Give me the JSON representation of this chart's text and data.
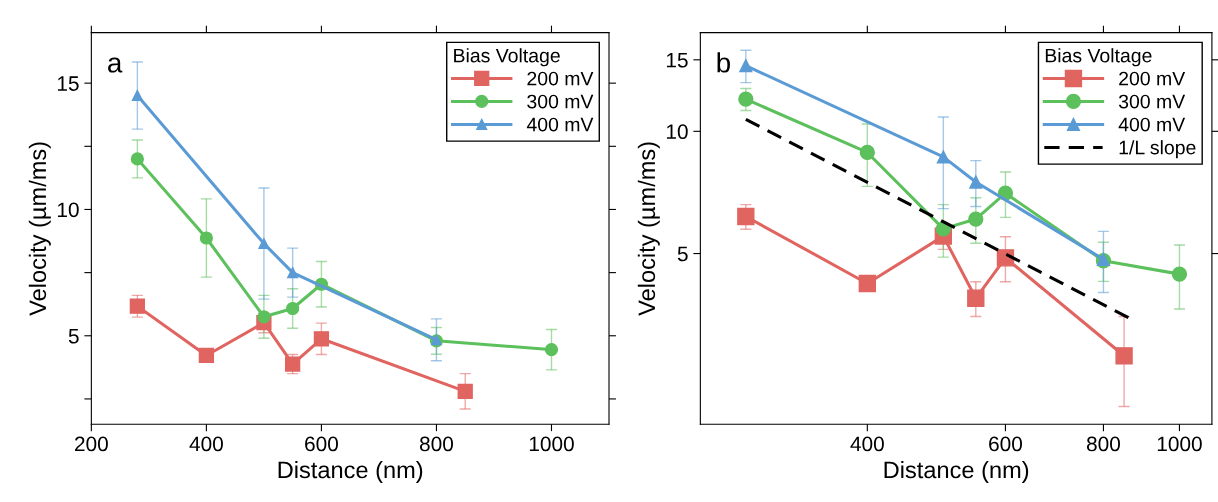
{
  "chart_data": [
    {
      "type": "line",
      "xlabel": "Distance (nm)",
      "ylabel": "Velocity (µm/ms)",
      "legend_title": "Bias Voltage",
      "legend": "top right",
      "grid": false,
      "annotations": [
        "a"
      ],
      "xlim": [
        200,
        1100
      ],
      "xticks": [
        200,
        400,
        600,
        800,
        1000
      ],
      "ylim": [
        1.5,
        17
      ],
      "yticks": [
        {
          "value": 2.5,
          "label": null
        },
        5,
        {
          "value": 7.5,
          "label": null
        },
        10,
        {
          "value": 12.5,
          "label": null
        },
        15
      ],
      "series": [
        {
          "name": "200 mV",
          "color": "#e06460",
          "marker": "square",
          "x": [
            280,
            400,
            500,
            550,
            600,
            850
          ],
          "values": [
            6.17,
            4.22,
            5.52,
            3.88,
            4.88,
            2.8
          ],
          "errors": [
            0.43,
            null,
            0.4,
            0.38,
            0.62,
            0.7
          ]
        },
        {
          "name": "300 mV",
          "color": "#5cc05c",
          "marker": "circle",
          "x": [
            280,
            400,
            500,
            550,
            600,
            800,
            1000
          ],
          "values": [
            12.0,
            8.87,
            5.75,
            6.08,
            7.04,
            4.8,
            4.45
          ],
          "errors": [
            0.75,
            1.55,
            0.85,
            0.78,
            0.9,
            0.53,
            0.8
          ]
        },
        {
          "name": "400 mV",
          "color": "#5b9bd5",
          "marker": "triangle",
          "x": [
            280,
            500,
            550,
            800
          ],
          "values": [
            14.51,
            8.65,
            7.5,
            4.84
          ],
          "errors": [
            1.33,
            2.2,
            0.97,
            0.83
          ]
        }
      ]
    },
    {
      "type": "line",
      "xlabel": "Distance (nm)",
      "ylabel": "Velocity (µm/ms)",
      "legend_title": "Bias Voltage",
      "legend": "top right",
      "grid": false,
      "annotations": [
        "b"
      ],
      "log": "xy",
      "xlim": [
        245,
        1100
      ],
      "xticks": [
        400,
        600,
        800,
        1000
      ],
      "ylim": [
        1.9,
        17.5
      ],
      "yticks": [
        5,
        10,
        15
      ],
      "series": [
        {
          "name": "200 mV",
          "color": "#e06460",
          "marker": "square",
          "x": [
            280,
            400,
            500,
            550,
            600,
            850
          ],
          "values": [
            6.17,
            4.22,
            5.52,
            3.88,
            4.88,
            2.8
          ],
          "errors": [
            0.43,
            null,
            0.4,
            0.38,
            0.62,
            0.7
          ]
        },
        {
          "name": "300 mV",
          "color": "#5cc05c",
          "marker": "circle",
          "x": [
            280,
            400,
            500,
            550,
            600,
            800,
            1000
          ],
          "values": [
            12.0,
            8.87,
            5.75,
            6.08,
            7.04,
            4.8,
            4.45
          ],
          "errors": [
            0.75,
            1.55,
            0.85,
            0.78,
            0.9,
            0.53,
            0.8
          ]
        },
        {
          "name": "400 mV",
          "color": "#5b9bd5",
          "marker": "triangle",
          "x": [
            280,
            500,
            550,
            800
          ],
          "values": [
            14.51,
            8.65,
            7.5,
            4.84
          ],
          "errors": [
            1.33,
            2.2,
            0.97,
            0.83
          ]
        },
        {
          "name": "1/L slope",
          "color": "#000000",
          "marker": "none",
          "line_style": "dashed",
          "x": [
            280,
            870
          ],
          "values": [
            10.7,
            3.44
          ]
        }
      ]
    }
  ]
}
